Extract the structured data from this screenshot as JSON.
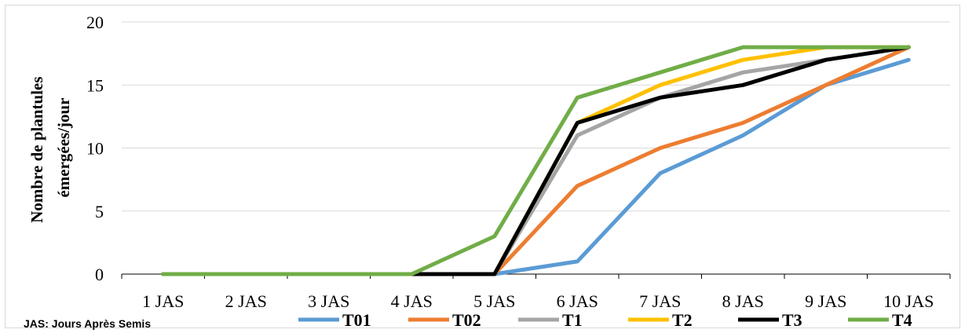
{
  "chart_data": {
    "type": "line",
    "categories": [
      "1 JAS",
      "2 JAS",
      "3 JAS",
      "4 JAS",
      "5 JAS",
      "6 JAS",
      "7 JAS",
      "8 JAS",
      "9 JAS",
      "10 JAS"
    ],
    "ylabel": [
      "Nombre de plantules",
      "émergées/jour"
    ],
    "xlabel": "",
    "ylim": [
      0,
      20
    ],
    "yticks": [
      "0",
      "5",
      "10",
      "15",
      "20"
    ],
    "grid": true,
    "legend_position": "bottom",
    "note": "JAS: Jours Après Semis",
    "series": [
      {
        "name": "T01",
        "color": "#5b9bd5",
        "values": [
          0,
          0,
          0,
          0,
          0,
          1,
          8,
          11,
          15,
          17
        ]
      },
      {
        "name": "T02",
        "color": "#ed7d31",
        "values": [
          0,
          0,
          0,
          0,
          0,
          7,
          10,
          12,
          15,
          18
        ]
      },
      {
        "name": "T1",
        "color": "#a5a5a5",
        "values": [
          0,
          0,
          0,
          0,
          0,
          11,
          14,
          16,
          17,
          18
        ]
      },
      {
        "name": "T2",
        "color": "#ffc000",
        "values": [
          0,
          0,
          0,
          0,
          0,
          12,
          15,
          17,
          18,
          18
        ]
      },
      {
        "name": "T3",
        "color": "#000000",
        "values": [
          0,
          0,
          0,
          0,
          0,
          12,
          14,
          15,
          17,
          18
        ]
      },
      {
        "name": "T4",
        "color": "#70ad47",
        "values": [
          0,
          0,
          0,
          0,
          3,
          14,
          16,
          18,
          18,
          18
        ]
      }
    ]
  }
}
